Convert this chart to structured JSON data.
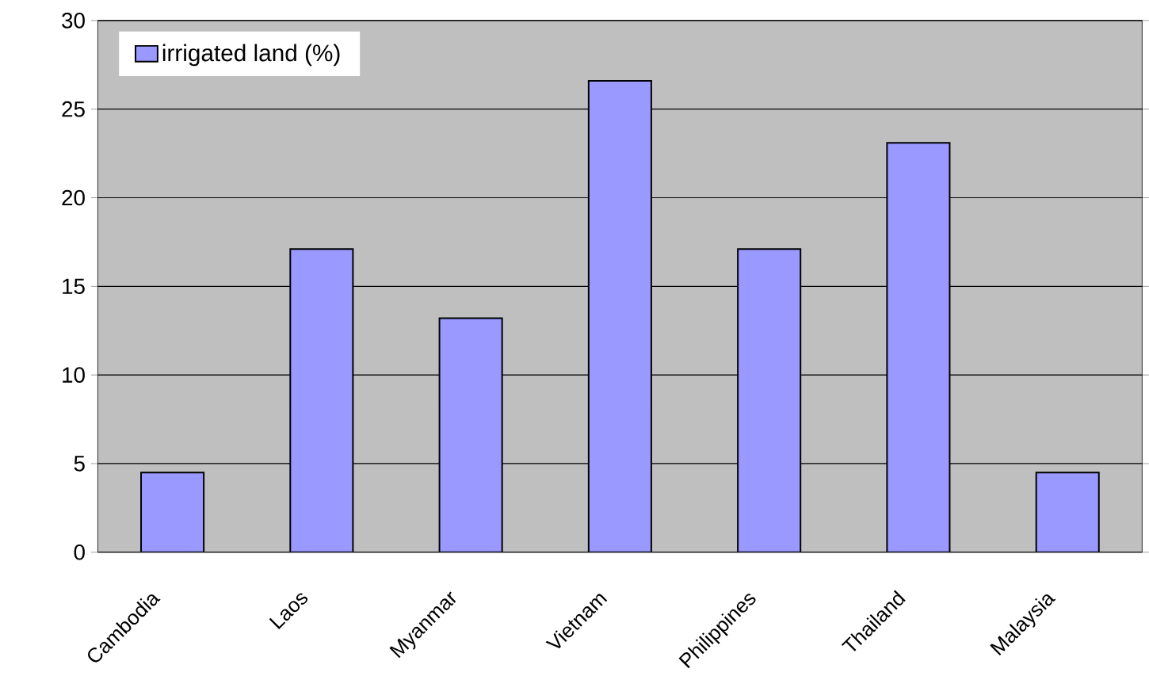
{
  "chart_data": {
    "type": "bar",
    "categories": [
      "Cambodia",
      "Laos",
      "Myanmar",
      "Vietnam",
      "Philippines",
      "Thailand",
      "Malaysia"
    ],
    "series": [
      {
        "name": "irrigated land (%)",
        "color": "#9999ff",
        "values": [
          4.5,
          17.1,
          13.2,
          26.6,
          17.1,
          23.1,
          4.5
        ]
      }
    ],
    "ylim": [
      0,
      30
    ],
    "yticks": [
      0,
      5,
      10,
      15,
      20,
      25,
      30
    ],
    "grid": "y",
    "legend": "top left"
  }
}
